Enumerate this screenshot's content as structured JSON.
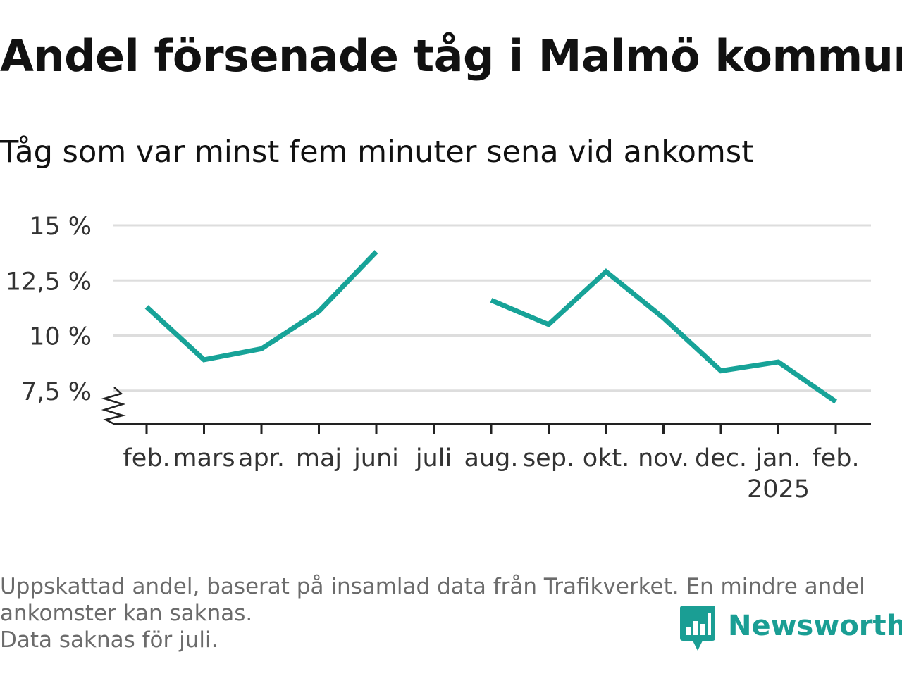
{
  "title": "Andel försenade tåg i Malmö kommun",
  "subtitle": "Tåg som var minst fem minuter sena vid ankomst",
  "chart_data": {
    "type": "line",
    "title": "Andel försenade tåg i Malmö kommun",
    "subtitle": "Tåg som var minst fem minuter sena vid ankomst",
    "xlabel": "",
    "ylabel": "",
    "categories": [
      "feb.",
      "mars",
      "apr.",
      "maj",
      "juni",
      "juli",
      "aug.",
      "sep.",
      "okt.",
      "nov.",
      "dec.",
      "jan.",
      "feb."
    ],
    "year_label": "2025",
    "year_label_category_index": 11,
    "series": [
      {
        "values": [
          11.3,
          8.9,
          9.4,
          11.1,
          13.8,
          null,
          11.6,
          10.5,
          12.9,
          10.8,
          8.4,
          8.8,
          7.0
        ]
      }
    ],
    "ylim": [
      6.0,
      15.0
    ],
    "yticks": [
      7.5,
      10,
      12.5,
      15
    ],
    "ytick_labels": [
      "7,5 %",
      "10 %",
      "12,5 %",
      "15 %"
    ],
    "y_axis_break": true,
    "grid": true,
    "legend": "none",
    "colors": {
      "line": "#17a398",
      "grid": "#dddddd",
      "axis": "#222222"
    }
  },
  "footnote": {
    "line1": "Uppskattad andel, baserat på insamlad data från Trafikverket. En mindre andel",
    "line2": "ankomster kan saknas.",
    "line3": "Data saknas för juli."
  },
  "logo": {
    "text": "Newsworthy",
    "icon": "bar-chart-speech-bubble-icon",
    "color": "#1a9e94"
  }
}
